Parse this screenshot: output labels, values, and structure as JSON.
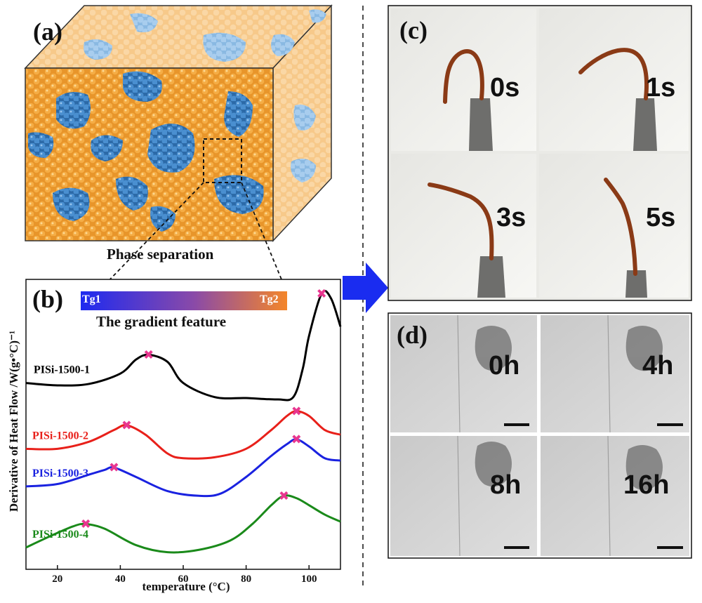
{
  "figure": {
    "panel_a": {
      "label": "(a)",
      "caption": "Phase separation"
    },
    "panel_b": {
      "label": "(b)",
      "gradient_start": "Tg1",
      "gradient_end": "Tg2",
      "gradient_caption": "The gradient feature"
    },
    "panel_c": {
      "label": "(c)",
      "frames": [
        "0s",
        "1s",
        "3s",
        "5s"
      ]
    },
    "panel_d": {
      "label": "(d)",
      "frames": [
        "0h",
        "4h",
        "8h",
        "16h"
      ]
    }
  },
  "colors": {
    "matrix": "#f2a33a",
    "domain": "#3b7fc2",
    "arrow": "#1a2cf0",
    "marker": "#e8368f"
  },
  "chart_data": {
    "type": "line",
    "title": "",
    "xlabel": "temperature (°C)",
    "ylabel": "Derivative of Heat Flow /W(g•°C)⁻¹",
    "xlim": [
      10,
      110
    ],
    "xticks": [
      20,
      40,
      60,
      80,
      100
    ],
    "series": [
      {
        "name": "PISi-1500-1",
        "color": "#000000",
        "x": [
          10,
          20,
          30,
          40,
          45,
          49,
          55,
          60,
          70,
          80,
          90,
          95,
          98,
          100,
          104,
          107,
          110
        ],
        "y": [
          2.0,
          1.95,
          1.98,
          2.2,
          2.5,
          2.6,
          2.45,
          2.0,
          1.7,
          1.68,
          1.65,
          1.7,
          2.3,
          3.0,
          3.9,
          3.8,
          3.2
        ],
        "peaks": [
          {
            "x": 49,
            "y": 2.6
          },
          {
            "x": 104,
            "y": 3.9
          }
        ]
      },
      {
        "name": "PISi-1500-2",
        "color": "#e8201a",
        "x": [
          10,
          20,
          30,
          38,
          42,
          48,
          55,
          60,
          70,
          80,
          88,
          93,
          96,
          100,
          105,
          110
        ],
        "y": [
          0.6,
          0.6,
          0.75,
          1.0,
          1.1,
          0.9,
          0.5,
          0.4,
          0.42,
          0.6,
          1.0,
          1.3,
          1.4,
          1.3,
          1.0,
          0.9
        ],
        "peaks": [
          {
            "x": 42,
            "y": 1.1
          },
          {
            "x": 96,
            "y": 1.4
          }
        ]
      },
      {
        "name": "PISi-1500-3",
        "color": "#1a22e0",
        "x": [
          10,
          20,
          30,
          35,
          38,
          45,
          55,
          65,
          72,
          80,
          88,
          93,
          96,
          100,
          105,
          110
        ],
        "y": [
          -0.2,
          -0.15,
          0.05,
          0.15,
          0.2,
          0.0,
          -0.3,
          -0.4,
          -0.35,
          0.0,
          0.45,
          0.7,
          0.8,
          0.65,
          0.4,
          0.35
        ],
        "peaks": [
          {
            "x": 38,
            "y": 0.2
          },
          {
            "x": 96,
            "y": 0.8
          }
        ]
      },
      {
        "name": "PISi-1500-4",
        "color": "#1a8a1a",
        "x": [
          10,
          18,
          25,
          29,
          35,
          45,
          55,
          65,
          75,
          82,
          88,
          92,
          96,
          100,
          105,
          110
        ],
        "y": [
          -1.5,
          -1.25,
          -1.05,
          -1.0,
          -1.1,
          -1.45,
          -1.6,
          -1.55,
          -1.35,
          -1.0,
          -0.6,
          -0.4,
          -0.45,
          -0.6,
          -0.8,
          -0.95
        ],
        "peaks": [
          {
            "x": 29,
            "y": -1.0
          },
          {
            "x": 92,
            "y": -0.4
          }
        ]
      }
    ],
    "ylim": [
      -1.8,
      4.1
    ],
    "legend": "inline-left"
  }
}
